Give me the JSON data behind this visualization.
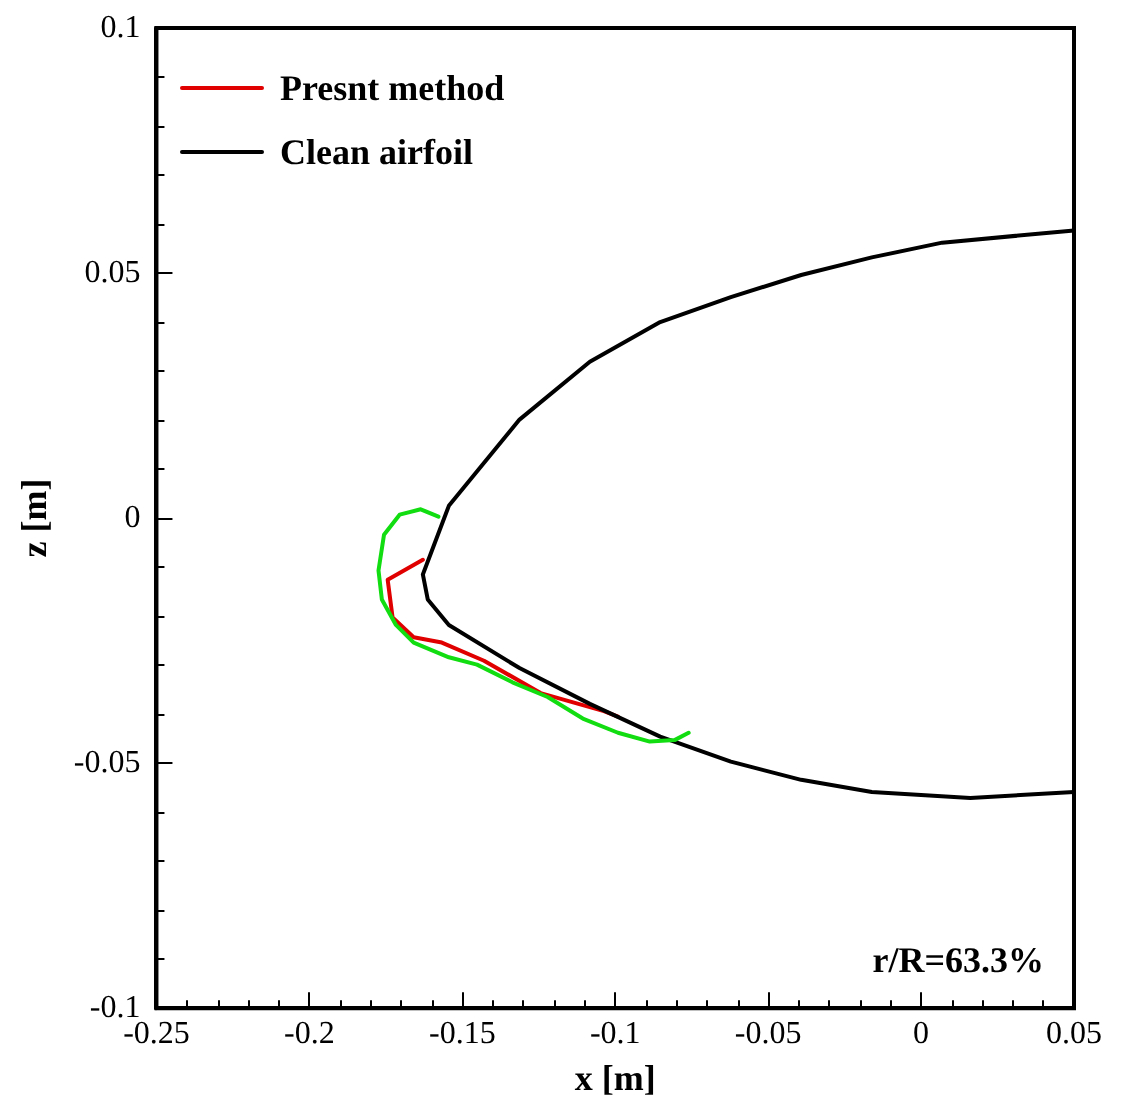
{
  "chart_data": {
    "type": "line",
    "xlabel": "x [m]",
    "ylabel": "z [m]",
    "annotations": [
      "r/R=63.3%"
    ],
    "xlim": [
      -0.25,
      0.05
    ],
    "xticks": [
      -0.25,
      -0.2,
      -0.15,
      -0.1,
      -0.05,
      0,
      0.05
    ],
    "ylim": [
      -0.1,
      0.1
    ],
    "yticks": [
      -0.1,
      -0.05,
      0,
      0.05,
      0.1
    ],
    "grid": false,
    "legend": "top left",
    "marker": "none",
    "line_style": "solid",
    "series": [
      {
        "name": "Presnt method",
        "color": "#e00000",
        "x": [
          -0.1629,
          -0.1744,
          -0.1728,
          -0.1659,
          -0.1567,
          -0.1429,
          -0.1244,
          -0.1037,
          -0.0991
        ],
        "values": [
          -0.0085,
          -0.0126,
          -0.0203,
          -0.0243,
          -0.0254,
          -0.0291,
          -0.0357,
          -0.0394,
          -0.0405
        ]
      },
      {
        "name": "Clean airfoil",
        "color": "#000000",
        "x": [
          0.05,
          0.0069,
          -0.0161,
          -0.0392,
          -0.0622,
          -0.0853,
          -0.1083,
          -0.1313,
          -0.1544,
          -0.1629,
          -0.1613,
          -0.1544,
          -0.1313,
          -0.1083,
          -0.0853,
          -0.0622,
          -0.0392,
          -0.0161,
          0.0161,
          0.05
        ],
        "values": [
          0.0587,
          0.0562,
          0.0532,
          0.0496,
          0.0451,
          0.04,
          0.0319,
          0.0201,
          0.0025,
          -0.0115,
          -0.0166,
          -0.0218,
          -0.0306,
          -0.0379,
          -0.0446,
          -0.0497,
          -0.0534,
          -0.0559,
          -0.0571,
          -0.0559
        ]
      },
      {
        "color": "#11dd11",
        "x": [
          -0.1578,
          -0.1636,
          -0.1705,
          -0.1756,
          -0.1774,
          -0.1763,
          -0.1717,
          -0.1659,
          -0.1544,
          -0.1452,
          -0.1336,
          -0.1221,
          -0.1106,
          -0.0991,
          -0.0887,
          -0.0806,
          -0.076
        ],
        "values": [
          0.0003,
          0.0018,
          0.0007,
          -0.0034,
          -0.0107,
          -0.0166,
          -0.0218,
          -0.0254,
          -0.0284,
          -0.0299,
          -0.0335,
          -0.0365,
          -0.0409,
          -0.0438,
          -0.0456,
          -0.0453,
          -0.0438
        ]
      }
    ]
  }
}
